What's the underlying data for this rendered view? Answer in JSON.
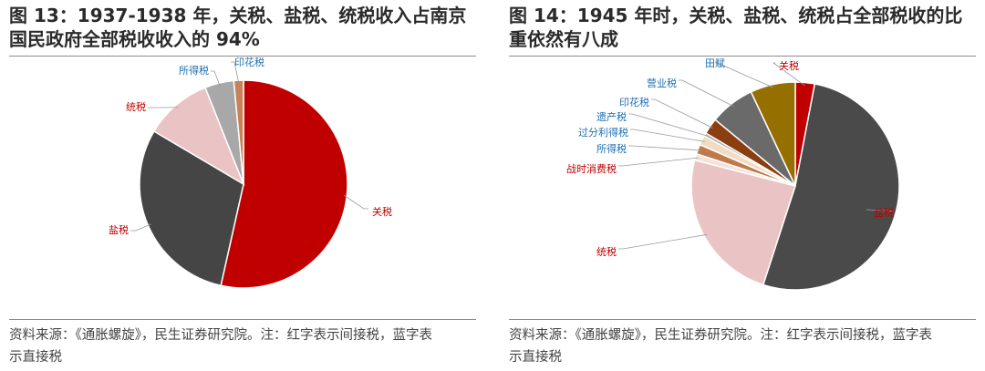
{
  "figures": [
    {
      "title_lines": [
        "图 13：1937-1938 年，关税、盐税、统税收入占南京",
        "国民政府全部税收收入的 94%"
      ],
      "source_lines": [
        "资料来源：《通胀螺旋》，民生证券研究院。注：红字表示间接税，蓝字表",
        "示直接税"
      ]
    },
    {
      "title_lines": [
        "图 14：1945 年时，关税、盐税、统税占全部税收的比",
        "重依然有八成"
      ],
      "source_lines": [
        "资料来源：《通胀螺旋》，民生证券研究院。注：红字表示间接税，蓝字表",
        "示直接税"
      ]
    }
  ],
  "chart_data": [
    {
      "type": "pie",
      "title": "图 13：1937-1938 年，关税、盐税、统税收入占南京国民政府全部税收收入的 94%",
      "slices": [
        {
          "name": "关税",
          "value": 53.5,
          "color": "#c00000",
          "label_color": "#c00000"
        },
        {
          "name": "盐税",
          "value": 30.0,
          "color": "#454545",
          "label_color": "#c00000"
        },
        {
          "name": "统税",
          "value": 10.5,
          "color": "#eac4c4",
          "label_color": "#c00000"
        },
        {
          "name": "所得税",
          "value": 4.5,
          "color": "#a8a8a8",
          "label_color": "#1f6fb2"
        },
        {
          "name": "印花税",
          "value": 1.5,
          "color": "#c8825a",
          "label_color": "#1f6fb2"
        }
      ]
    },
    {
      "type": "pie",
      "title": "图 14：1945 年时，关税、盐税、统税占全部税收的比重依然有八成",
      "slices": [
        {
          "name": "关税",
          "value": 3.0,
          "color": "#c00000",
          "label_color": "#c00000"
        },
        {
          "name": "盐税",
          "value": 52.0,
          "color": "#4a4a4a",
          "label_color": "#c00000"
        },
        {
          "name": "统税",
          "value": 24.0,
          "color": "#eac4c4",
          "label_color": "#c00000"
        },
        {
          "name": "战时消费税",
          "value": 1.0,
          "color": "#f5e2dc",
          "label_color": "#c00000"
        },
        {
          "name": "所得税",
          "value": 1.5,
          "color": "#c07a4a",
          "label_color": "#1f6fb2"
        },
        {
          "name": "过分利得税",
          "value": 1.5,
          "color": "#f0dcc0",
          "label_color": "#1f6fb2"
        },
        {
          "name": "遗产税",
          "value": 0.5,
          "color": "#a8a8a8",
          "label_color": "#1f6fb2"
        },
        {
          "name": "印花税",
          "value": 2.5,
          "color": "#8b3e0f",
          "label_color": "#1f6fb2"
        },
        {
          "name": "营业税",
          "value": 7.0,
          "color": "#6a6a6a",
          "label_color": "#1f6fb2"
        },
        {
          "name": "田赋",
          "value": 7.0,
          "color": "#957000",
          "label_color": "#1f6fb2"
        }
      ]
    }
  ]
}
